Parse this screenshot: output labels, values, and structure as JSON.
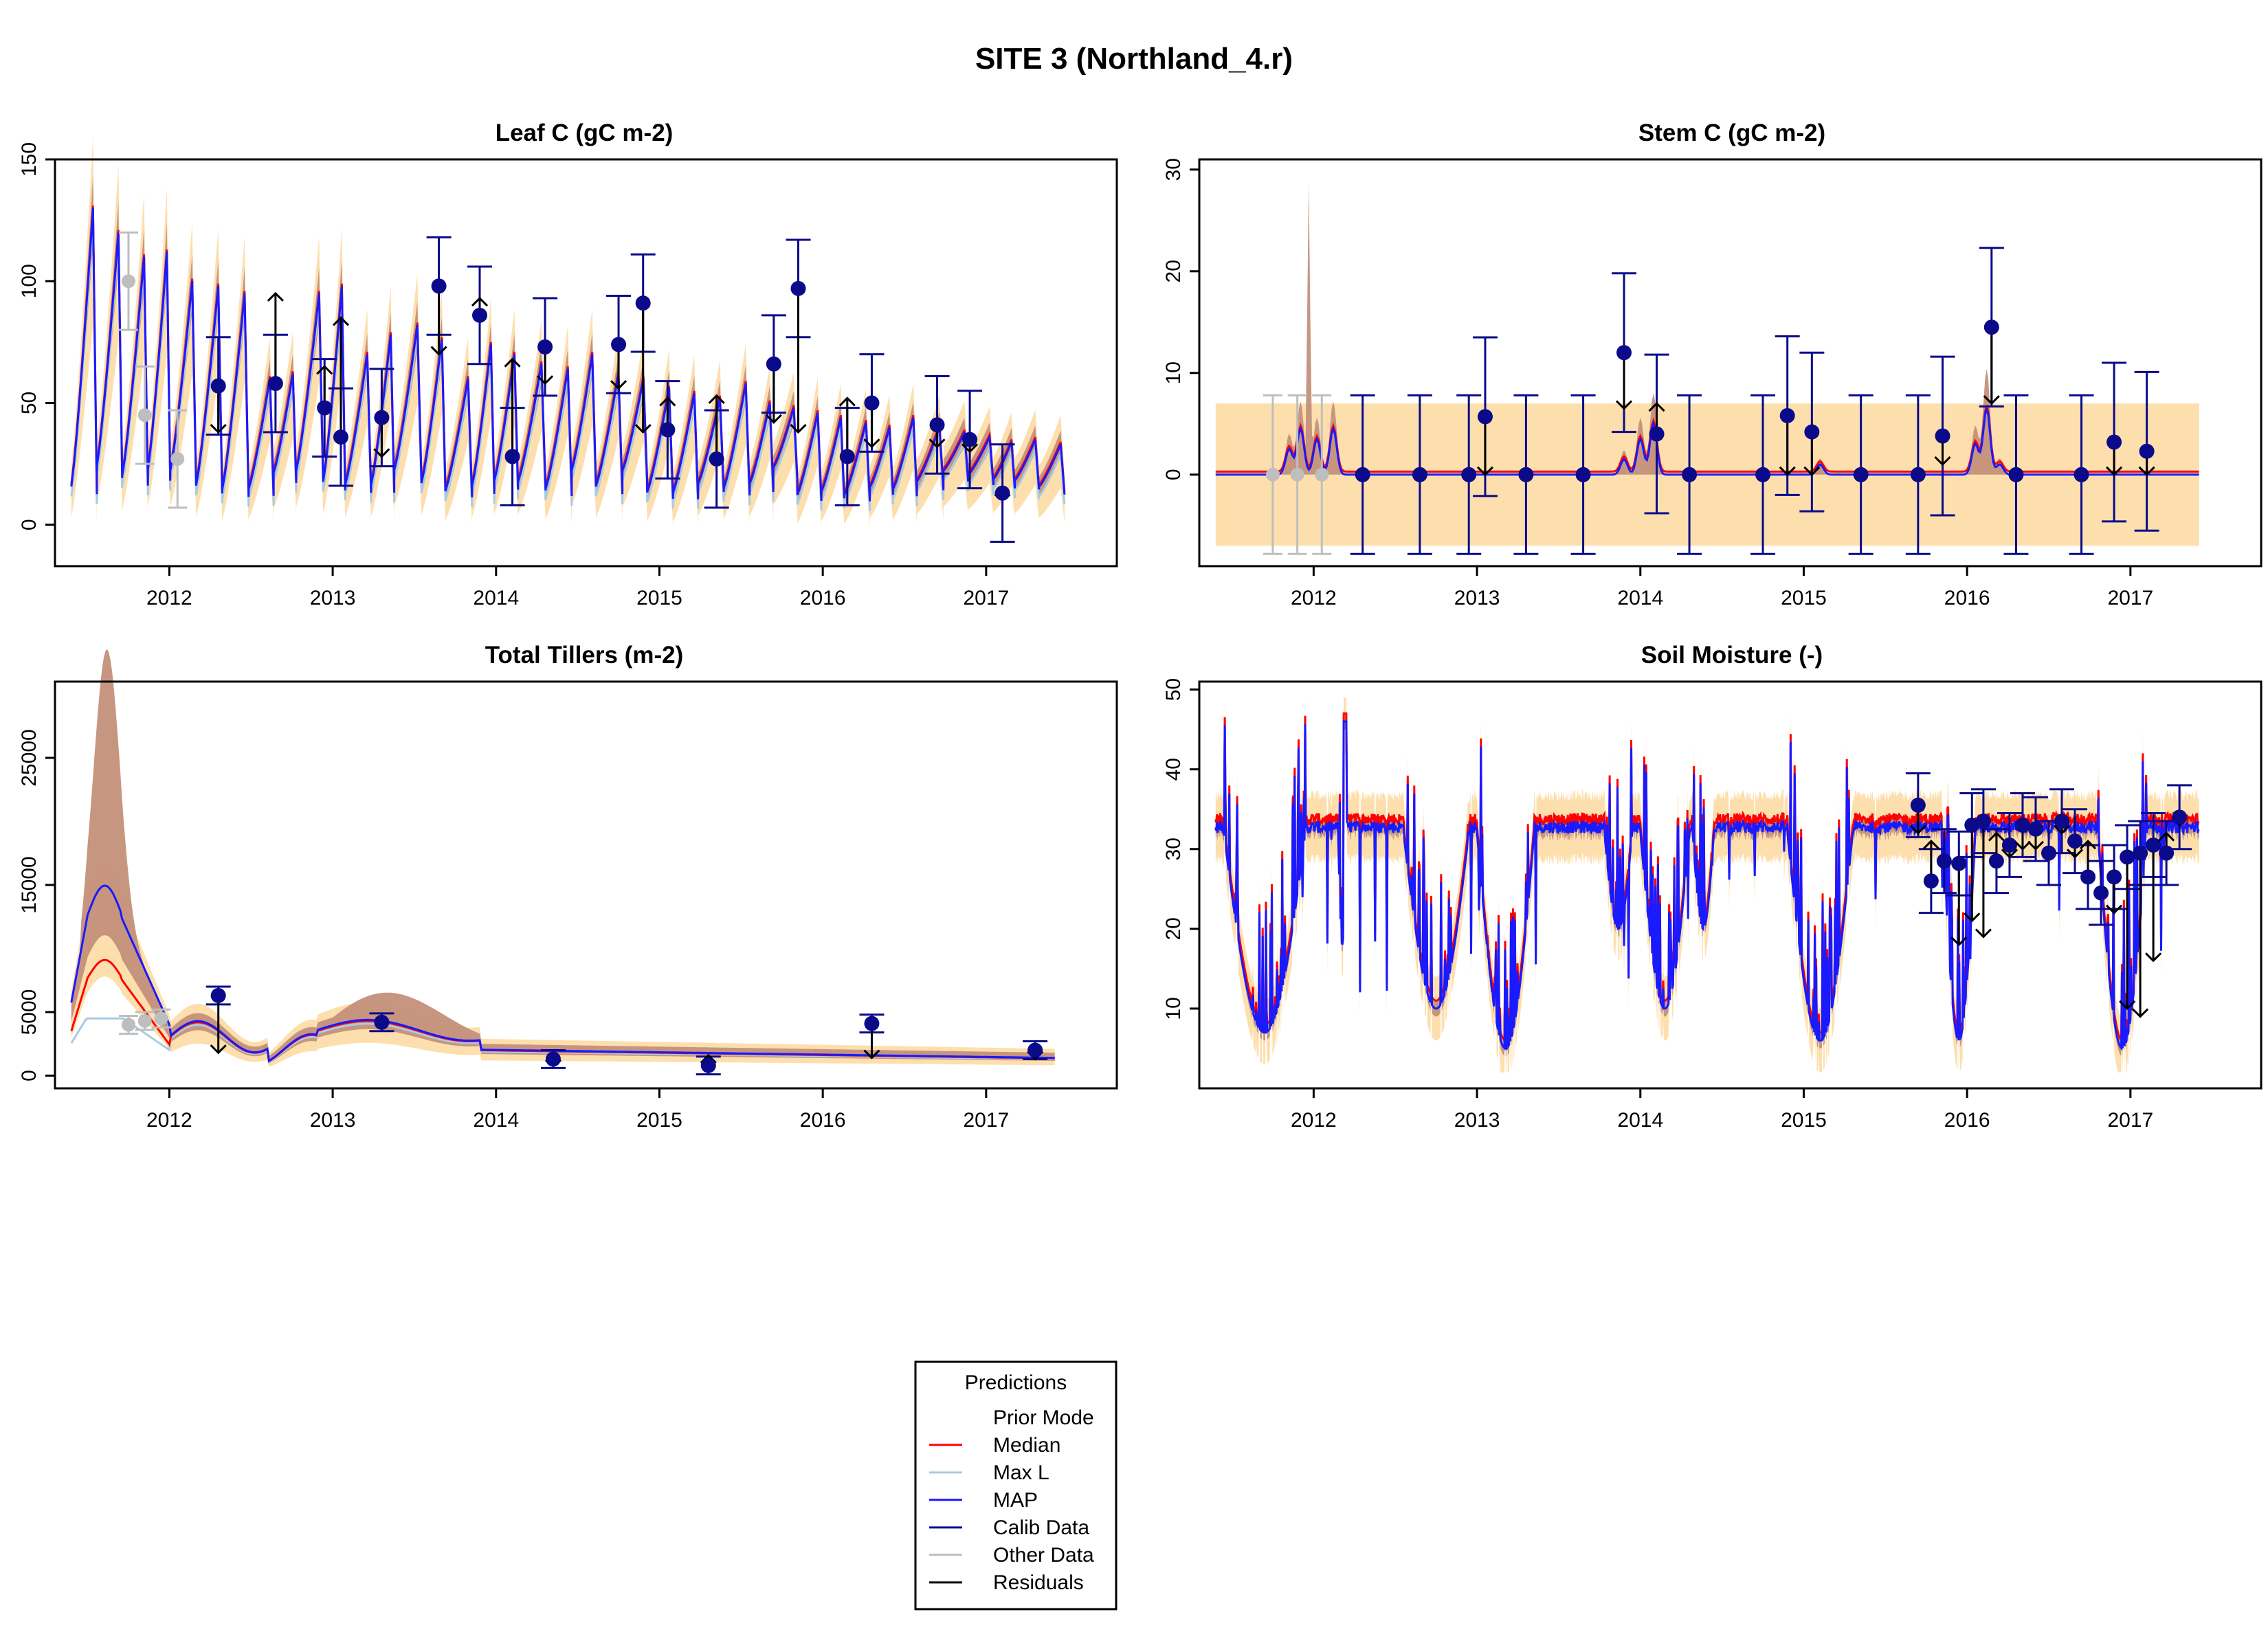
{
  "figure_title": "SITE 3 (Northland_4.r)",
  "colors": {
    "prior_band": "#fddfae",
    "posterior_band": "#c4907a",
    "median": "#ff0000",
    "maxl": "#a8cce0",
    "map": "#1a1aff",
    "calib": "#0a0a8a",
    "other": "#bebebe",
    "residual": "#000000"
  },
  "legend": {
    "title": "Predictions",
    "entries": [
      {
        "label": "Prior Mode",
        "color": "#ffffff"
      },
      {
        "label": "Median",
        "color": "#ff0000"
      },
      {
        "label": "Max L",
        "color": "#a8cce0"
      },
      {
        "label": "MAP",
        "color": "#1a1aff"
      },
      {
        "label": "Calib Data",
        "color": "#0a0a8a"
      },
      {
        "label": "Other Data",
        "color": "#bebebe"
      },
      {
        "label": "Residuals",
        "color": "#000000"
      }
    ]
  },
  "chart_data": [
    {
      "type": "line",
      "title": "Leaf C (gC m-2)",
      "xlim": [
        2011.3,
        2017.8
      ],
      "ylim": [
        -17,
        150
      ],
      "x_ticks": [
        2012,
        2013,
        2014,
        2015,
        2016,
        2017
      ],
      "y_ticks": [
        0,
        50,
        100,
        150
      ],
      "series_style": "sawtooth",
      "baseline_start": [
        2011.4,
        35
      ],
      "calib_points": [
        {
          "x": 2012.3,
          "y": 57,
          "err": 20,
          "model": 38
        },
        {
          "x": 2012.65,
          "y": 58,
          "err": 20,
          "model": 95
        },
        {
          "x": 2012.95,
          "y": 48,
          "err": 20,
          "model": 65
        },
        {
          "x": 2013.05,
          "y": 36,
          "err": 20,
          "model": 85
        },
        {
          "x": 2013.3,
          "y": 44,
          "err": 20,
          "model": 28
        },
        {
          "x": 2013.65,
          "y": 98,
          "err": 20,
          "model": 70
        },
        {
          "x": 2013.9,
          "y": 86,
          "err": 20,
          "model": 93
        },
        {
          "x": 2014.1,
          "y": 28,
          "err": 20,
          "model": 68
        },
        {
          "x": 2014.3,
          "y": 73,
          "err": 20,
          "model": 58
        },
        {
          "x": 2014.75,
          "y": 74,
          "err": 20,
          "model": 56
        },
        {
          "x": 2014.9,
          "y": 91,
          "err": 20,
          "model": 38
        },
        {
          "x": 2015.05,
          "y": 39,
          "err": 20,
          "model": 52
        },
        {
          "x": 2015.35,
          "y": 27,
          "err": 20,
          "model": 53
        },
        {
          "x": 2015.7,
          "y": 66,
          "err": 20,
          "model": 42
        },
        {
          "x": 2015.85,
          "y": 97,
          "err": 20,
          "model": 38
        },
        {
          "x": 2016.15,
          "y": 28,
          "err": 20,
          "model": 52
        },
        {
          "x": 2016.3,
          "y": 50,
          "err": 20,
          "model": 32
        },
        {
          "x": 2016.7,
          "y": 41,
          "err": 20,
          "model": 32
        },
        {
          "x": 2016.9,
          "y": 35,
          "err": 20,
          "model": 30
        },
        {
          "x": 2017.1,
          "y": 13,
          "err": 20,
          "model": 15
        }
      ],
      "other_points": [
        {
          "x": 2011.75,
          "y": 100,
          "err": 20
        },
        {
          "x": 2011.85,
          "y": 45,
          "err": 20
        },
        {
          "x": 2012.05,
          "y": 27,
          "err": 20
        }
      ]
    },
    {
      "type": "line",
      "title": "Stem C (gC m-2)",
      "xlim": [
        2011.3,
        2017.8
      ],
      "ylim": [
        -9,
        31
      ],
      "x_ticks": [
        2012,
        2013,
        2014,
        2015,
        2016,
        2017
      ],
      "y_ticks": [
        0,
        10,
        20,
        30
      ],
      "calib_points": [
        {
          "x": 2012.3,
          "y": 0,
          "err": 7.8,
          "model": 0
        },
        {
          "x": 2012.65,
          "y": 0,
          "err": 7.8,
          "model": 0
        },
        {
          "x": 2012.95,
          "y": 0,
          "err": 7.8,
          "model": 0
        },
        {
          "x": 2013.05,
          "y": 5.7,
          "err": 7.8,
          "model": 0
        },
        {
          "x": 2013.3,
          "y": 0,
          "err": 7.8,
          "model": 0
        },
        {
          "x": 2013.65,
          "y": 0,
          "err": 7.8,
          "model": 0
        },
        {
          "x": 2013.9,
          "y": 12,
          "err": 7.8,
          "model": 6.5
        },
        {
          "x": 2014.1,
          "y": 4,
          "err": 7.8,
          "model": 7
        },
        {
          "x": 2014.3,
          "y": 0,
          "err": 7.8,
          "model": 0
        },
        {
          "x": 2014.75,
          "y": 0,
          "err": 7.8,
          "model": 0
        },
        {
          "x": 2014.9,
          "y": 5.8,
          "err": 7.8,
          "model": 0
        },
        {
          "x": 2015.05,
          "y": 4.2,
          "err": 7.8,
          "model": 0
        },
        {
          "x": 2015.35,
          "y": 0,
          "err": 7.8,
          "model": 0
        },
        {
          "x": 2015.7,
          "y": 0,
          "err": 7.8,
          "model": 0
        },
        {
          "x": 2015.85,
          "y": 3.8,
          "err": 7.8,
          "model": 1
        },
        {
          "x": 2016.15,
          "y": 14.5,
          "err": 7.8,
          "model": 7
        },
        {
          "x": 2016.3,
          "y": 0,
          "err": 7.8,
          "model": 0
        },
        {
          "x": 2016.7,
          "y": 0,
          "err": 7.8,
          "model": 0
        },
        {
          "x": 2016.9,
          "y": 3.2,
          "err": 7.8,
          "model": 0
        },
        {
          "x": 2017.1,
          "y": 2.3,
          "err": 7.8,
          "model": 0
        }
      ],
      "other_points": [
        {
          "x": 2011.75,
          "y": 0,
          "err": 7.8
        },
        {
          "x": 2011.9,
          "y": 0,
          "err": 7.8
        },
        {
          "x": 2012.05,
          "y": 0,
          "err": 7.8
        }
      ]
    },
    {
      "type": "line",
      "title": "Total Tillers (m-2)",
      "xlim": [
        2011.3,
        2017.8
      ],
      "ylim": [
        -1000,
        31000
      ],
      "x_ticks": [
        2012,
        2013,
        2014,
        2015,
        2016,
        2017
      ],
      "y_ticks": [
        0,
        5000,
        15000,
        25000
      ],
      "calib_points": [
        {
          "x": 2012.3,
          "y": 6300,
          "err": 700,
          "model": 1800
        },
        {
          "x": 2013.3,
          "y": 4200,
          "err": 700,
          "model": 3900
        },
        {
          "x": 2014.35,
          "y": 1300,
          "err": 700,
          "model": 1700
        },
        {
          "x": 2015.3,
          "y": 800,
          "err": 700,
          "model": 1600
        },
        {
          "x": 2016.3,
          "y": 4100,
          "err": 700,
          "model": 1400
        },
        {
          "x": 2017.3,
          "y": 2000,
          "err": 700,
          "model": 1300
        }
      ],
      "other_points": [
        {
          "x": 2011.75,
          "y": 4000,
          "err": 700
        },
        {
          "x": 2011.85,
          "y": 4300,
          "err": 700
        },
        {
          "x": 2011.95,
          "y": 4500,
          "err": 700
        }
      ]
    },
    {
      "type": "line",
      "title": "Soil Moisture (-)",
      "xlim": [
        2011.3,
        2017.8
      ],
      "ylim": [
        0,
        51
      ],
      "x_ticks": [
        2012,
        2013,
        2014,
        2015,
        2016,
        2017
      ],
      "y_ticks": [
        10,
        20,
        30,
        40,
        50
      ],
      "calib_points": [
        {
          "x": 2015.7,
          "y": 35.5,
          "err": 4,
          "model": 32
        },
        {
          "x": 2015.78,
          "y": 26,
          "err": 4,
          "model": 31
        },
        {
          "x": 2015.86,
          "y": 28.5,
          "err": 4,
          "model": 28
        },
        {
          "x": 2015.95,
          "y": 28.2,
          "err": 4,
          "model": 18
        },
        {
          "x": 2016.03,
          "y": 33,
          "err": 4,
          "model": 21
        },
        {
          "x": 2016.1,
          "y": 33.5,
          "err": 4,
          "model": 19
        },
        {
          "x": 2016.18,
          "y": 28.5,
          "err": 4,
          "model": 32
        },
        {
          "x": 2016.26,
          "y": 30.5,
          "err": 4,
          "model": 29
        },
        {
          "x": 2016.34,
          "y": 33,
          "err": 4,
          "model": 30
        },
        {
          "x": 2016.42,
          "y": 32.5,
          "err": 4,
          "model": 30
        },
        {
          "x": 2016.5,
          "y": 29.5,
          "err": 4,
          "model": 30
        },
        {
          "x": 2016.58,
          "y": 33.5,
          "err": 4,
          "model": 32
        },
        {
          "x": 2016.66,
          "y": 31,
          "err": 4,
          "model": 29
        },
        {
          "x": 2016.74,
          "y": 26.5,
          "err": 4,
          "model": 31
        },
        {
          "x": 2016.82,
          "y": 24.5,
          "err": 4,
          "model": 24
        },
        {
          "x": 2016.9,
          "y": 26.5,
          "err": 4,
          "model": 22
        },
        {
          "x": 2016.98,
          "y": 29,
          "err": 4,
          "model": 10
        },
        {
          "x": 2017.06,
          "y": 29.5,
          "err": 4,
          "model": 9
        },
        {
          "x": 2017.14,
          "y": 30.5,
          "err": 4,
          "model": 16
        },
        {
          "x": 2017.22,
          "y": 29.5,
          "err": 4,
          "model": 32
        },
        {
          "x": 2017.3,
          "y": 34,
          "err": 4,
          "model": 33
        }
      ],
      "other_points": []
    }
  ]
}
